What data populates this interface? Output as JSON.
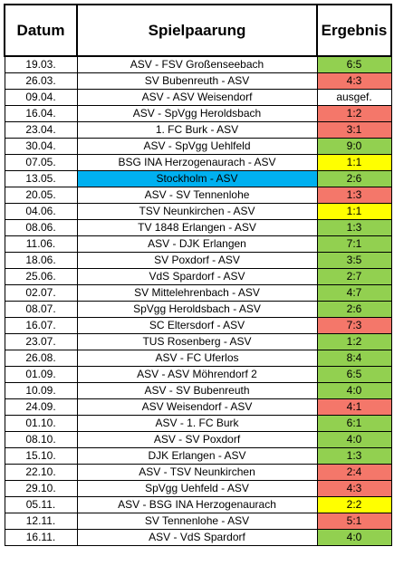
{
  "headers": {
    "date": "Datum",
    "match": "Spielpaarung",
    "result": "Ergebnis"
  },
  "colors": {
    "win": "#92d050",
    "loss": "#f4776a",
    "draw": "#ffff00",
    "highlight": "#00b0f0"
  },
  "rows": [
    {
      "date": "19.03.",
      "match": "ASV - FSV Großenseebach",
      "result": "6:5",
      "status": "green"
    },
    {
      "date": "26.03.",
      "match": "SV Bubenreuth - ASV",
      "result": "4:3",
      "status": "red"
    },
    {
      "date": "09.04.",
      "match": "ASV - ASV Weisendorf",
      "result": "ausgef.",
      "status": "none"
    },
    {
      "date": "16.04.",
      "match": "ASV - SpVgg Heroldsbach",
      "result": "1:2",
      "status": "red"
    },
    {
      "date": "23.04.",
      "match": "1. FC Burk - ASV",
      "result": "3:1",
      "status": "red"
    },
    {
      "date": "30.04.",
      "match": "ASV - SpVgg Uehlfeld",
      "result": "9:0",
      "status": "green"
    },
    {
      "date": "07.05.",
      "match": "BSG INA Herzogenaurach - ASV",
      "result": "1:1",
      "status": "yellow"
    },
    {
      "date": "13.05.",
      "match": "Stockholm - ASV",
      "result": "2:6",
      "status": "green",
      "highlight": true
    },
    {
      "date": "20.05.",
      "match": "ASV - SV Tennenlohe",
      "result": "1:3",
      "status": "red"
    },
    {
      "date": "04.06.",
      "match": "TSV Neunkirchen - ASV",
      "result": "1:1",
      "status": "yellow"
    },
    {
      "date": "08.06.",
      "match": "TV 1848 Erlangen - ASV",
      "result": "1:3",
      "status": "green"
    },
    {
      "date": "11.06.",
      "match": "ASV - DJK Erlangen",
      "result": "7:1",
      "status": "green"
    },
    {
      "date": "18.06.",
      "match": "SV Poxdorf - ASV",
      "result": "3:5",
      "status": "green"
    },
    {
      "date": "25.06.",
      "match": "VdS Spardorf - ASV",
      "result": "2:7",
      "status": "green"
    },
    {
      "date": "02.07.",
      "match": "SV Mittelehrenbach - ASV",
      "result": "4:7",
      "status": "green"
    },
    {
      "date": "08.07.",
      "match": "SpVgg Heroldsbach - ASV",
      "result": "2:6",
      "status": "green"
    },
    {
      "date": "16.07.",
      "match": "SC Eltersdorf - ASV",
      "result": "7:3",
      "status": "red"
    },
    {
      "date": "23.07.",
      "match": "TUS Rosenberg - ASV",
      "result": "1:2",
      "status": "green"
    },
    {
      "date": "26.08.",
      "match": "ASV - FC Uferlos",
      "result": "8:4",
      "status": "green"
    },
    {
      "date": "01.09.",
      "match": "ASV - ASV Möhrendorf 2",
      "result": "6:5",
      "status": "green"
    },
    {
      "date": "10.09.",
      "match": "ASV - SV Bubenreuth",
      "result": "4:0",
      "status": "green"
    },
    {
      "date": "24.09.",
      "match": "ASV Weisendorf - ASV",
      "result": "4:1",
      "status": "red"
    },
    {
      "date": "01.10.",
      "match": "ASV - 1. FC Burk",
      "result": "6:1",
      "status": "green"
    },
    {
      "date": "08.10.",
      "match": "ASV - SV Poxdorf",
      "result": "4:0",
      "status": "green"
    },
    {
      "date": "15.10.",
      "match": "DJK Erlangen - ASV",
      "result": "1:3",
      "status": "green"
    },
    {
      "date": "22.10.",
      "match": "ASV - TSV Neunkirchen",
      "result": "2:4",
      "status": "red"
    },
    {
      "date": "29.10.",
      "match": "SpVgg Uehfeld - ASV",
      "result": "4:3",
      "status": "red"
    },
    {
      "date": "05.11.",
      "match": "ASV - BSG INA Herzogenaurach",
      "result": "2:2",
      "status": "yellow"
    },
    {
      "date": "12.11.",
      "match": "SV Tennenlohe - ASV",
      "result": "5:1",
      "status": "red"
    },
    {
      "date": "16.11.",
      "match": "ASV - VdS Spardorf",
      "result": "4:0",
      "status": "green"
    }
  ]
}
